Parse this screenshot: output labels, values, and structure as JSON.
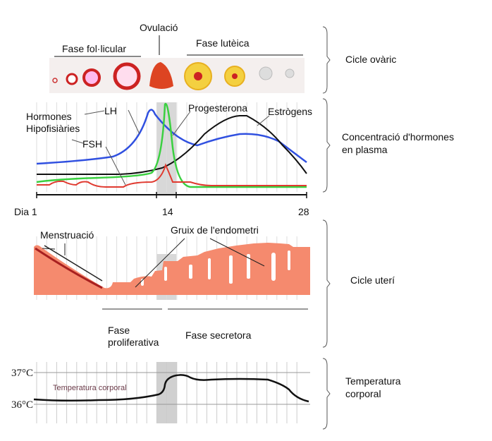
{
  "ovarian": {
    "ovulation": "Ovulació",
    "follicular": "Fase fol·licular",
    "luteal": "Fase lutèica"
  },
  "hormones": {
    "pituitary_l1": "Hormones",
    "pituitary_l2": "Hipofisiàries",
    "lh": "LH",
    "fsh": "FSH",
    "progesterone": "Progesterona",
    "estrogens": "Estrògens",
    "colors": {
      "lh": "#3050e0",
      "fsh": "#e03a30",
      "progesterone": "#3ad040",
      "estrogens": "#111111"
    }
  },
  "axis": {
    "day1": "Dia 1",
    "day14": "14",
    "day28": "28"
  },
  "uterine": {
    "menstruation": "Menstruació",
    "thickness": "Gruix de l'endometri",
    "proliferative_l1": "Fase",
    "proliferative_l2": "proliferativa",
    "secretory": "Fase secretora",
    "color": "#f58a6e"
  },
  "temperature": {
    "label": "Temperatura corporal",
    "t37": "37°C",
    "t36": "36°C"
  },
  "side_labels": {
    "ovarian_cycle": "Cicle ovàric",
    "hormone_l1": "Concentració d'hormones",
    "hormone_l2": "en plasma",
    "uterine_cycle": "Cicle uterí",
    "temp_l1": "Temperatura",
    "temp_l2": "corporal"
  }
}
